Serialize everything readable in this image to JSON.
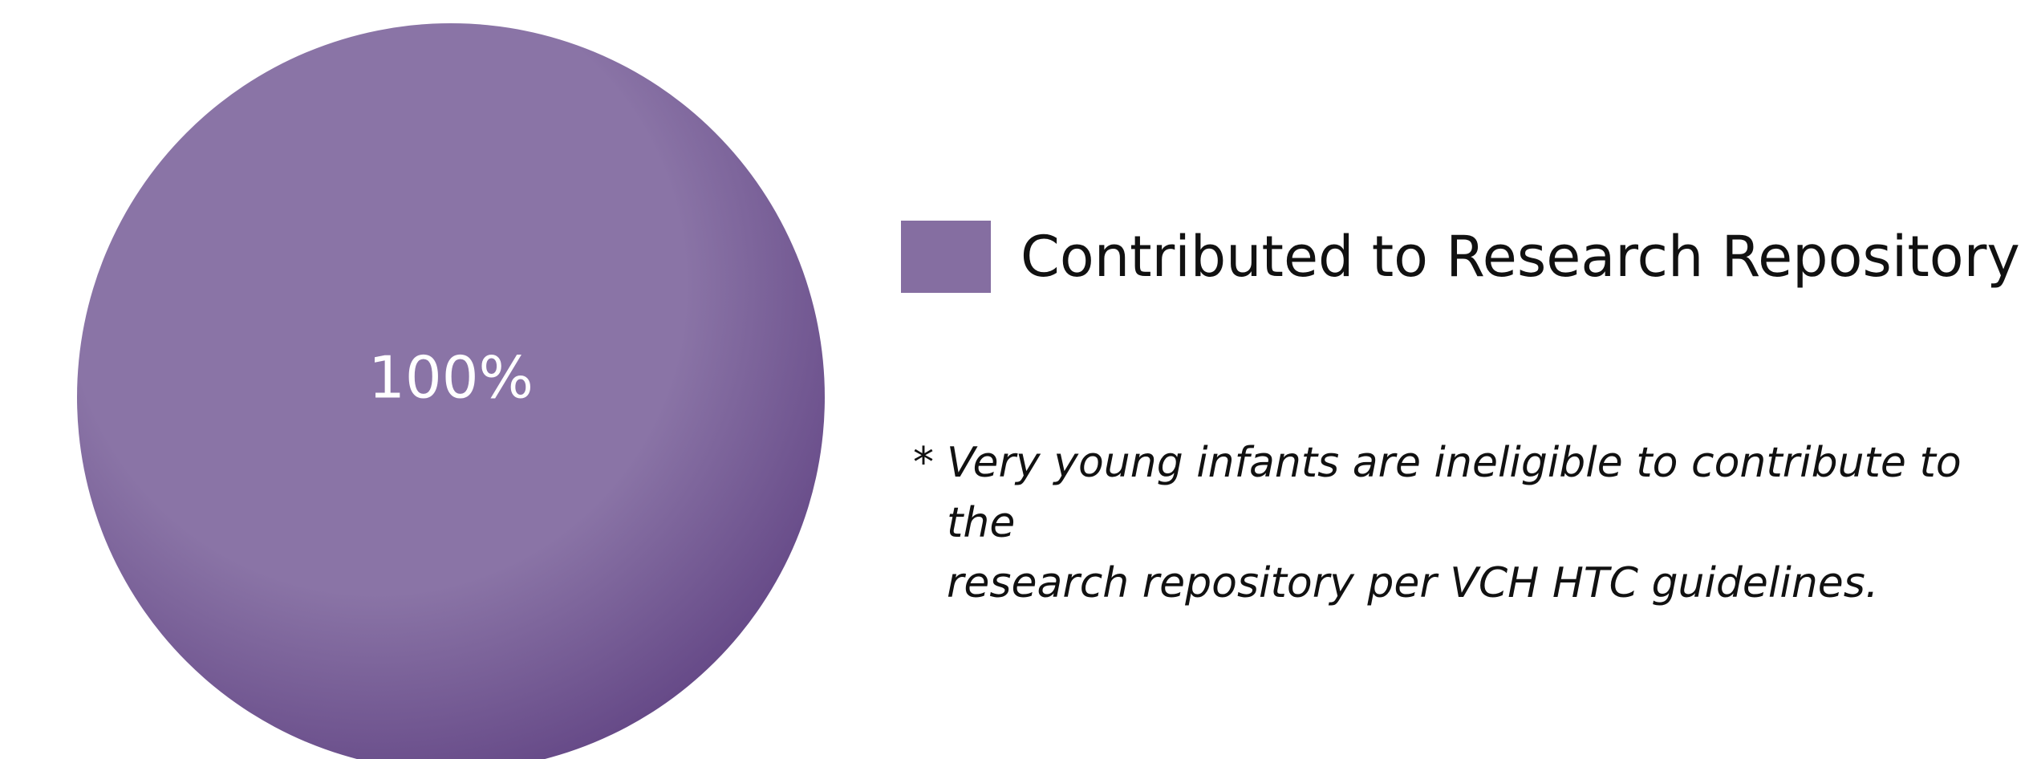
{
  "chart_data": {
    "type": "pie",
    "title": "",
    "slices": [
      {
        "label": "Contributed to Research Repository",
        "value": 100,
        "data_label": "100%",
        "color": "#856ea1"
      }
    ],
    "legend_position": "right",
    "footnote": {
      "marker": "*",
      "text": "Very young infants are ineligible to contribute to the\nresearch repository per VCH HTC guidelines."
    }
  },
  "colors": {
    "slice_light": "#8a74a6",
    "slice_dark": "#5d3f80",
    "label_text": "#ffffff"
  }
}
